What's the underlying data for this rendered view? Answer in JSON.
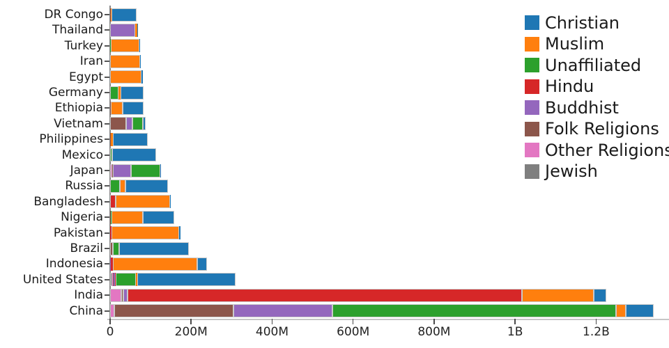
{
  "chart_data": {
    "type": "bar",
    "orientation": "horizontal",
    "stacked": true,
    "title": "",
    "xlabel": "",
    "ylabel": "",
    "unit": "millions of people",
    "grid": false,
    "legend_position": "top-right",
    "x_ticks": [
      {
        "label": "0",
        "value": 0
      },
      {
        "label": "200M",
        "value": 200
      },
      {
        "label": "400M",
        "value": 400
      },
      {
        "label": "600M",
        "value": 600
      },
      {
        "label": "800M",
        "value": 800
      },
      {
        "label": "1B",
        "value": 1000
      },
      {
        "label": "1.2B",
        "value": 1200
      }
    ],
    "xlim_millions": [
      0,
      1380
    ],
    "legend": [
      {
        "label": "Christian",
        "color": "#1f77b4"
      },
      {
        "label": "Muslim",
        "color": "#ff7f0e"
      },
      {
        "label": "Unaffiliated",
        "color": "#2ca02c"
      },
      {
        "label": "Hindu",
        "color": "#d62728"
      },
      {
        "label": "Buddhist",
        "color": "#9467bd"
      },
      {
        "label": "Folk Religions",
        "color": "#8c564b"
      },
      {
        "label": "Other Religions",
        "color": "#e377c2"
      },
      {
        "label": "Jewish",
        "color": "#7f7f7f"
      }
    ],
    "stack_order": [
      "Jewish",
      "Other Religions",
      "Folk Religions",
      "Buddhist",
      "Hindu",
      "Unaffiliated",
      "Muslim",
      "Christian"
    ],
    "rows": [
      {
        "country": "DR Congo",
        "values": {
          "Folk Religions": 1.2,
          "Unaffiliated": 0.3,
          "Other Religions": 0.3,
          "Muslim": 1.0,
          "Christian": 63.2
        }
      },
      {
        "country": "Thailand",
        "values": {
          "Folk Religions": 0.2,
          "Buddhist": 62.2,
          "Unaffiliated": 0.2,
          "Muslim": 3.7,
          "Christian": 0.6
        }
      },
      {
        "country": "Turkey",
        "values": {
          "Muslim": 71.3,
          "Unaffiliated": 0.9,
          "Christian": 0.3
        }
      },
      {
        "country": "Iran",
        "values": {
          "Muslim": 73.6,
          "Christian": 0.2,
          "Unaffiliated": 0.1,
          "Other Religions": 0.1
        }
      },
      {
        "country": "Egypt",
        "values": {
          "Muslim": 77.0,
          "Christian": 4.1
        }
      },
      {
        "country": "Germany",
        "values": {
          "Jewish": 0.2,
          "Buddhist": 0.3,
          "Unaffiliated": 20.3,
          "Muslim": 4.8,
          "Christian": 56.5
        }
      },
      {
        "country": "Ethiopia",
        "values": {
          "Folk Religions": 2.2,
          "Muslim": 28.7,
          "Christian": 52.1
        }
      },
      {
        "country": "Vietnam",
        "values": {
          "Other Religions": 0.4,
          "Folk Religions": 39.8,
          "Buddhist": 14.4,
          "Unaffiliated": 26.0,
          "Christian": 7.2
        }
      },
      {
        "country": "Philippines",
        "values": {
          "Folk Religions": 1.4,
          "Unaffiliated": 0.1,
          "Muslim": 5.1,
          "Christian": 86.4
        }
      },
      {
        "country": "Mexico",
        "values": {
          "Other Religions": 0.2,
          "Unaffiliated": 5.3,
          "Christian": 107.8
        }
      },
      {
        "country": "Japan",
        "values": {
          "Other Religions": 5.9,
          "Folk Religions": 0.5,
          "Buddhist": 45.8,
          "Unaffiliated": 72.1,
          "Muslim": 0.2,
          "Christian": 2.0
        }
      },
      {
        "country": "Russia",
        "values": {
          "Jewish": 0.3,
          "Folk Religions": 0.3,
          "Buddhist": 0.1,
          "Unaffiliated": 23.2,
          "Muslim": 14.3,
          "Christian": 104.8
        }
      },
      {
        "country": "Bangladesh",
        "values": {
          "Buddhist": 0.7,
          "Hindu": 13.5,
          "Muslim": 134.4,
          "Christian": 0.3
        }
      },
      {
        "country": "Nigeria",
        "values": {
          "Folk Religions": 2.2,
          "Unaffiliated": 0.6,
          "Muslim": 77.3,
          "Christian": 78.1
        }
      },
      {
        "country": "Pakistan",
        "values": {
          "Folk Religions": 0.2,
          "Hindu": 3.3,
          "Muslim": 167.3,
          "Christian": 2.8
        }
      },
      {
        "country": "Brazil",
        "values": {
          "Other Religions": 0.6,
          "Folk Religions": 5.5,
          "Buddhist": 0.2,
          "Unaffiliated": 15.4,
          "Christian": 173.3
        }
      },
      {
        "country": "Indonesia",
        "values": {
          "Folk Religions": 0.7,
          "Buddhist": 1.7,
          "Hindu": 4.1,
          "Unaffiliated": 0.2,
          "Muslim": 209.1,
          "Christian": 23.7
        }
      },
      {
        "country": "United States",
        "values": {
          "Jewish": 5.6,
          "Other Religions": 1.9,
          "Folk Religions": 0.6,
          "Buddhist": 3.7,
          "Hindu": 1.8,
          "Unaffiliated": 51.0,
          "Muslim": 2.8,
          "Christian": 243.1
        }
      },
      {
        "country": "India",
        "values": {
          "Other Religions": 27.6,
          "Folk Religions": 5.8,
          "Buddhist": 9.3,
          "Hindu": 973.6,
          "Unaffiliated": 0.9,
          "Muslim": 176.2,
          "Christian": 31.1
        }
      },
      {
        "country": "China",
        "values": {
          "Other Religions": 9.6,
          "Folk Religions": 294.3,
          "Buddhist": 244.8,
          "Unaffiliated": 700.7,
          "Muslim": 24.7,
          "Christian": 68.4
        }
      }
    ]
  }
}
